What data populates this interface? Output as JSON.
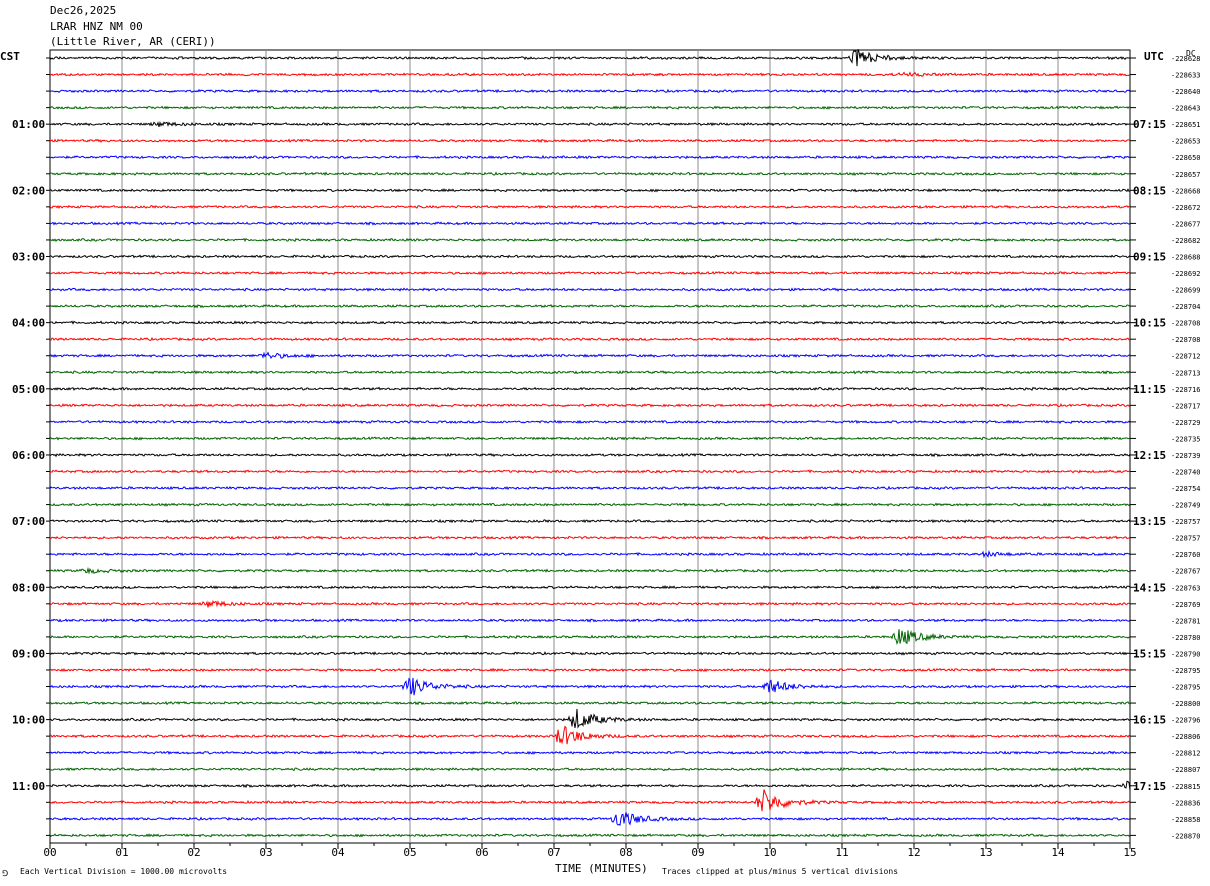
{
  "header": {
    "date": "Dec26,2025",
    "station": "LRAR HNZ NM 00",
    "location": "(Little River, AR (CERI))"
  },
  "left_tz": "CST",
  "right_tz": "UTC",
  "dc_label": "DC",
  "footer": {
    "scale": "Each Vertical Division = 1000.00 microvolts",
    "clip": "Traces clipped at plus/minus 5 vertical divisions",
    "mark": "⅁"
  },
  "colors": {
    "trace": [
      "#000000",
      "#ff0000",
      "#0000ff",
      "#006400"
    ],
    "grid": "#8c8c8c"
  },
  "chart_data": {
    "type": "line",
    "xlabel": "TIME (MINUTES)",
    "xlim": [
      0,
      15
    ],
    "x_ticks": [
      "00",
      "01",
      "02",
      "03",
      "04",
      "05",
      "06",
      "07",
      "08",
      "09",
      "10",
      "11",
      "12",
      "13",
      "14",
      "15"
    ],
    "left_hour_labels": [
      "01:00",
      "02:00",
      "03:00",
      "04:00",
      "05:00",
      "06:00",
      "07:00",
      "08:00",
      "09:00",
      "10:00",
      "11:00"
    ],
    "right_hour_labels": [
      "07:15",
      "08:15",
      "09:15",
      "10:15",
      "11:15",
      "12:15",
      "13:15",
      "14:15",
      "15:15",
      "16:15",
      "17:15"
    ],
    "dc_offsets": [
      -228628,
      -228633,
      -228640,
      -228643,
      -228651,
      -228653,
      -228650,
      -228657,
      -228668,
      -228672,
      -228677,
      -228682,
      -228688,
      -228692,
      -228699,
      -228704,
      -228708,
      -228708,
      -228712,
      -228713,
      -228716,
      -228717,
      -228729,
      -228735,
      -228739,
      -228740,
      -228754,
      -228749,
      -228757,
      -228757,
      -228760,
      -228767,
      -228763,
      -228769,
      -228781,
      -228780,
      -228790,
      -228795,
      -228795,
      -228800,
      -228796,
      -228806,
      -228812,
      -228807,
      -228815,
      -228836,
      -228858,
      -228870
    ],
    "events": [
      {
        "trace": 0,
        "minute": 11.2,
        "amp": 9
      },
      {
        "trace": 1,
        "minute": 11.8,
        "amp": 2
      },
      {
        "trace": 4,
        "minute": 1.5,
        "amp": 2
      },
      {
        "trace": 18,
        "minute": 3.0,
        "amp": 3
      },
      {
        "trace": 30,
        "minute": 13.0,
        "amp": 2
      },
      {
        "trace": 31,
        "minute": 0.5,
        "amp": 2
      },
      {
        "trace": 33,
        "minute": 2.2,
        "amp": 3
      },
      {
        "trace": 35,
        "minute": 11.8,
        "amp": 9
      },
      {
        "trace": 38,
        "minute": 5.0,
        "amp": 10
      },
      {
        "trace": 38,
        "minute": 10.0,
        "amp": 7
      },
      {
        "trace": 40,
        "minute": 7.3,
        "amp": 11
      },
      {
        "trace": 41,
        "minute": 7.1,
        "amp": 11
      },
      {
        "trace": 44,
        "minute": 15.0,
        "amp": 6
      },
      {
        "trace": 45,
        "minute": 9.9,
        "amp": 13
      },
      {
        "trace": 46,
        "minute": 7.9,
        "amp": 9
      }
    ]
  }
}
